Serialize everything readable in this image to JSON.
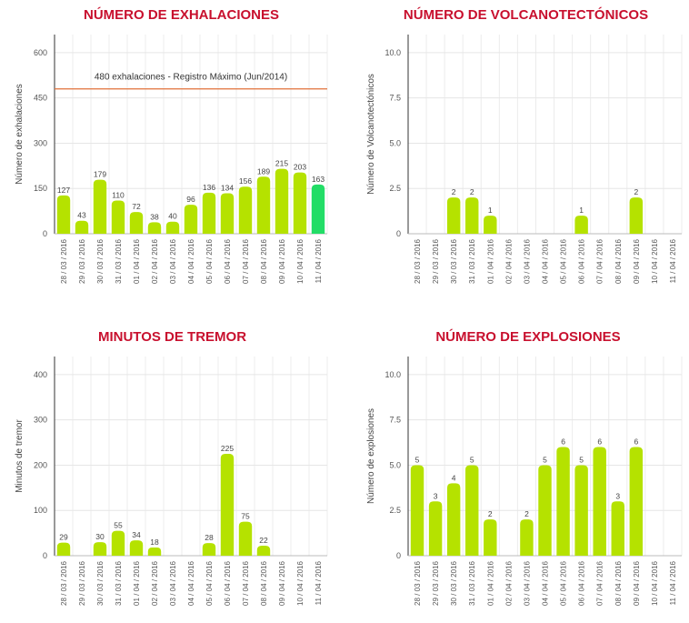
{
  "chart_data": [
    {
      "type": "bar",
      "title": "NÚMERO DE EXHALACIONES",
      "ylabel": "Número de exhalaciones",
      "xlabel": "",
      "categories": [
        "28 / 03 / 2016",
        "29 / 03 / 2016",
        "30 / 03 / 2016",
        "31 / 03 / 2016",
        "01 / 04 / 2016",
        "02 / 04 / 2016",
        "03 / 04 / 2016",
        "04 / 04 / 2016",
        "05 / 04 / 2016",
        "06 / 04 / 2016",
        "07 / 04 / 2016",
        "08 / 04 / 2016",
        "09 / 04 / 2016",
        "10 / 04 / 2016",
        "11 / 04 / 2016"
      ],
      "values": [
        127,
        43,
        179,
        110,
        72,
        38,
        40,
        96,
        136,
        134,
        156,
        189,
        215,
        203,
        163
      ],
      "value_labels": [
        "127",
        "43",
        "179",
        "110",
        "72",
        "38",
        "40",
        "96",
        "136",
        "134",
        "156",
        "189",
        "215",
        "203",
        "163"
      ],
      "yticks": [
        0,
        150,
        300,
        450,
        600
      ],
      "ytick_labels": [
        "0",
        "150",
        "300",
        "450",
        "600"
      ],
      "ylim": [
        0,
        660
      ],
      "reference_line": {
        "value": 480,
        "label": "480 exhalaciones -  Registro Máximo (Jun/2014)",
        "color": "#e0703a"
      },
      "bar_color": "#b5e200",
      "highlight_color": "#22dd66",
      "highlight_index": 14,
      "grid": true
    },
    {
      "type": "bar",
      "title": "NÚMERO DE VOLCANOTECTÓNICOS",
      "ylabel": "Número de Volcanotectónicos",
      "xlabel": "",
      "categories": [
        "28 / 03 / 2016",
        "29 / 03 / 2016",
        "30 / 03 / 2016",
        "31 / 03 / 2016",
        "01 / 04 / 2016",
        "02 / 04 / 2016",
        "03 / 04 / 2016",
        "04 / 04 / 2016",
        "05 / 04 / 2016",
        "06 / 04 / 2016",
        "07 / 04 / 2016",
        "08 / 04 / 2016",
        "09 / 04 / 2016",
        "10 / 04 / 2016",
        "11 / 04 / 2016"
      ],
      "values": [
        0,
        0,
        2,
        2,
        1,
        0,
        0,
        0,
        0,
        1,
        0,
        0,
        2,
        0,
        0
      ],
      "value_labels": [
        "",
        "",
        "2",
        "2",
        "1",
        "",
        "",
        "",
        "",
        "1",
        "",
        "",
        "2",
        "",
        ""
      ],
      "yticks": [
        0,
        2.5,
        5,
        7.5,
        10
      ],
      "ytick_labels": [
        "0",
        "2.5",
        "5.0",
        "7.5",
        "10.0"
      ],
      "ylim": [
        0,
        11
      ],
      "bar_color": "#b5e200",
      "grid": true
    },
    {
      "type": "bar",
      "title": "MINUTOS DE TREMOR",
      "ylabel": "Minutos de tremor",
      "xlabel": "",
      "categories": [
        "28 / 03 / 2016",
        "29 / 03 / 2016",
        "30 / 03 / 2016",
        "31 / 03 / 2016",
        "01 / 04 / 2016",
        "02 / 04 / 2016",
        "03 / 04 / 2016",
        "04 / 04 / 2016",
        "05 / 04 / 2016",
        "06 / 04 / 2016",
        "07 / 04 / 2016",
        "08 / 04 / 2016",
        "09 / 04 / 2016",
        "10 / 04 / 2016",
        "11 / 04 / 2016"
      ],
      "values": [
        29,
        0,
        30,
        55,
        34,
        18,
        0,
        0,
        28,
        225,
        75,
        22,
        0,
        0,
        0
      ],
      "value_labels": [
        "29",
        "",
        "30",
        "55",
        "34",
        "18",
        "",
        "",
        "28",
        "225",
        "75",
        "22",
        "",
        "",
        ""
      ],
      "yticks": [
        0,
        100,
        200,
        300,
        400
      ],
      "ytick_labels": [
        "0",
        "100",
        "200",
        "300",
        "400"
      ],
      "ylim": [
        0,
        440
      ],
      "bar_color": "#b5e200",
      "grid": true
    },
    {
      "type": "bar",
      "title": "NÚMERO DE EXPLOSIONES",
      "ylabel": "Número de explosiones",
      "xlabel": "",
      "categories": [
        "28 / 03 / 2016",
        "29 / 03 / 2016",
        "30 / 03 / 2016",
        "31 / 03 / 2016",
        "01 / 04 / 2016",
        "02 / 04 / 2016",
        "03 / 04 / 2016",
        "04 / 04 / 2016",
        "05 / 04 / 2016",
        "06 / 04 / 2016",
        "07 / 04 / 2016",
        "08 / 04 / 2016",
        "09 / 04 / 2016",
        "10 / 04 / 2016",
        "11 / 04 / 2016"
      ],
      "values": [
        5,
        3,
        4,
        5,
        2,
        0,
        2,
        5,
        6,
        5,
        6,
        3,
        6,
        0,
        0
      ],
      "value_labels": [
        "5",
        "3",
        "4",
        "5",
        "2",
        "",
        "2",
        "5",
        "6",
        "5",
        "6",
        "3",
        "6",
        "",
        ""
      ],
      "yticks": [
        0,
        2.5,
        5,
        7.5,
        10
      ],
      "ytick_labels": [
        "0",
        "2.5",
        "5.0",
        "7.5",
        "10.0"
      ],
      "ylim": [
        0,
        11
      ],
      "bar_color": "#b5e200",
      "grid": true
    }
  ]
}
